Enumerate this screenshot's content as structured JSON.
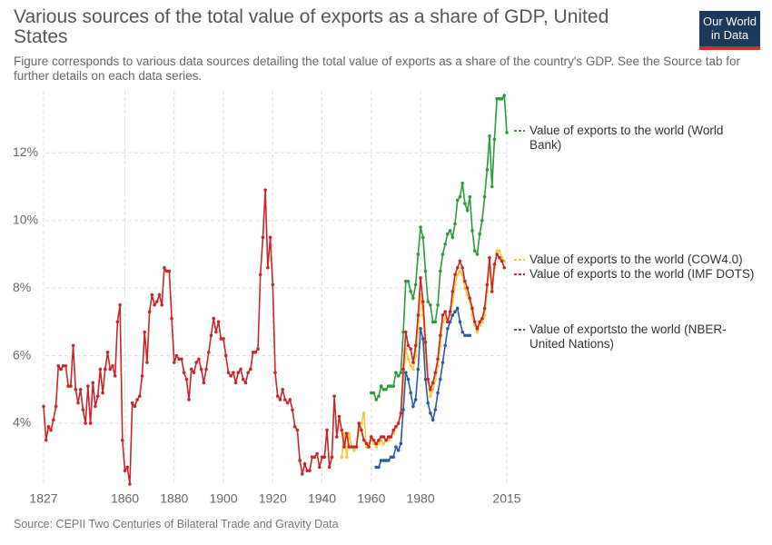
{
  "chart_data": {
    "type": "line",
    "title": "Various sources of the total value of exports as a share of GDP, United States",
    "subtitle": "Figure corresponds to various data sources detailing the total value of exports as a share of the country's GDP. See the Source tab for further details on each data series.",
    "source": "Source: CEPII Two Centuries of Bilateral Trade and Gravity Data",
    "logo": [
      "Our World",
      "in Data"
    ],
    "xlim": [
      1827,
      2015
    ],
    "xticks": [
      1827,
      1860,
      1880,
      1900,
      1920,
      1940,
      1960,
      1980,
      2015
    ],
    "ylim": [
      2.2,
      13.7
    ],
    "yticks": [
      {
        "value": 4,
        "label": "4%"
      },
      {
        "value": 6,
        "label": "6%"
      },
      {
        "value": 8,
        "label": "8%"
      },
      {
        "value": 10,
        "label": "10%"
      },
      {
        "value": 12,
        "label": "12%"
      }
    ],
    "grid": true,
    "series": [
      {
        "name": "Value of exports to the world (World Bank)",
        "color": "#2f9a3c",
        "x": [
          1960,
          1961,
          1962,
          1963,
          1964,
          1965,
          1966,
          1967,
          1968,
          1969,
          1970,
          1971,
          1972,
          1973,
          1974,
          1975,
          1976,
          1977,
          1978,
          1979,
          1980,
          1981,
          1982,
          1983,
          1984,
          1985,
          1986,
          1987,
          1988,
          1989,
          1990,
          1991,
          1992,
          1993,
          1994,
          1995,
          1996,
          1997,
          1998,
          1999,
          2000,
          2001,
          2002,
          2003,
          2004,
          2005,
          2006,
          2007,
          2008,
          2009,
          2010,
          2011,
          2012,
          2013,
          2014,
          2015
        ],
        "values": [
          4.9,
          4.9,
          4.7,
          4.8,
          5.1,
          5.0,
          5.0,
          5.1,
          5.1,
          5.1,
          5.5,
          5.4,
          5.5,
          6.7,
          8.2,
          8.2,
          7.9,
          7.7,
          8.1,
          9.0,
          9.8,
          9.5,
          8.5,
          7.6,
          7.5,
          7.0,
          7.0,
          7.5,
          8.5,
          9.0,
          9.3,
          9.6,
          9.7,
          9.5,
          9.9,
          10.6,
          10.7,
          11.1,
          10.5,
          10.3,
          10.7,
          9.7,
          9.1,
          9.0,
          9.6,
          10.0,
          10.7,
          11.5,
          12.5,
          11.0,
          12.4,
          13.6,
          13.6,
          13.6,
          13.7,
          12.6
        ]
      },
      {
        "name": "Value of exports to the world (COW4.0)",
        "color": "#f6c939",
        "x": [
          1948,
          1949,
          1950,
          1951,
          1952,
          1953,
          1954,
          1955,
          1956,
          1957,
          1958,
          1959,
          1960,
          1961,
          1962,
          1963,
          1964,
          1965,
          1966,
          1967,
          1968,
          1969,
          1970,
          1971,
          1972,
          1973,
          1974,
          1975,
          1976,
          1977,
          1978,
          1979,
          1980,
          1981,
          1982,
          1983,
          1984,
          1985,
          1986,
          1987,
          1988,
          1989,
          1990,
          1991,
          1992,
          1993,
          1994,
          1995,
          1996,
          1997,
          1998,
          1999,
          2000,
          2001,
          2002,
          2003,
          2004,
          2005,
          2006,
          2007,
          2008,
          2009,
          2010,
          2011,
          2012,
          2013,
          2014
        ],
        "values": [
          3.0,
          3.7,
          3.0,
          3.7,
          3.3,
          3.2,
          3.3,
          3.8,
          4.0,
          4.3,
          3.3,
          3.4,
          3.6,
          3.4,
          3.3,
          3.4,
          3.5,
          3.4,
          3.5,
          3.5,
          3.6,
          3.7,
          3.9,
          4.0,
          4.2,
          5.2,
          6.2,
          5.9,
          5.7,
          5.6,
          6.0,
          6.7,
          7.8,
          7.2,
          6.0,
          5.2,
          4.8,
          5.0,
          5.3,
          5.7,
          6.3,
          7.0,
          7.1,
          7.0,
          7.2,
          7.6,
          8.1,
          8.4,
          8.5,
          8.4,
          8.0,
          7.8,
          7.6,
          7.2,
          6.9,
          6.7,
          6.9,
          7.0,
          7.2,
          7.9,
          8.6,
          7.9,
          8.6,
          9.1,
          9.1,
          8.9,
          8.8
        ]
      },
      {
        "name": "Value of exports to the world (IMF DOTS)",
        "color": "#c8262b",
        "x": [
          1827,
          1828,
          1829,
          1830,
          1831,
          1832,
          1833,
          1834,
          1835,
          1836,
          1837,
          1838,
          1839,
          1840,
          1841,
          1842,
          1843,
          1844,
          1845,
          1846,
          1847,
          1848,
          1849,
          1850,
          1851,
          1852,
          1853,
          1854,
          1855,
          1856,
          1857,
          1858,
          1859,
          1860,
          1861,
          1862,
          1863,
          1864,
          1865,
          1866,
          1867,
          1868,
          1869,
          1870,
          1871,
          1872,
          1873,
          1874,
          1875,
          1876,
          1877,
          1878,
          1879,
          1880,
          1881,
          1882,
          1883,
          1884,
          1885,
          1886,
          1887,
          1888,
          1889,
          1890,
          1891,
          1892,
          1893,
          1894,
          1895,
          1896,
          1897,
          1898,
          1899,
          1900,
          1901,
          1902,
          1903,
          1904,
          1905,
          1906,
          1907,
          1908,
          1909,
          1910,
          1911,
          1912,
          1913,
          1914,
          1915,
          1916,
          1917,
          1918,
          1919,
          1920,
          1921,
          1922,
          1923,
          1924,
          1925,
          1926,
          1927,
          1928,
          1929,
          1930,
          1931,
          1932,
          1933,
          1934,
          1935,
          1936,
          1937,
          1938,
          1939,
          1940,
          1941,
          1942,
          1943,
          1944,
          1945,
          1946,
          1947,
          1948,
          1949,
          1950,
          1951,
          1952,
          1953,
          1954,
          1955,
          1956,
          1957,
          1958,
          1959,
          1960,
          1961,
          1962,
          1963,
          1964,
          1965,
          1966,
          1967,
          1968,
          1969,
          1970,
          1971,
          1972,
          1973,
          1974,
          1975,
          1976,
          1977,
          1978,
          1979,
          1980,
          1981,
          1982,
          1983,
          1984,
          1985,
          1986,
          1987,
          1988,
          1989,
          1990,
          1991,
          1992,
          1993,
          1994,
          1995,
          1996,
          1997,
          1998,
          1999,
          2000,
          2001,
          2002,
          2003,
          2004,
          2005,
          2006,
          2007,
          2008,
          2009,
          2010,
          2011,
          2012,
          2013,
          2014
        ],
        "values": [
          4.5,
          3.5,
          3.9,
          3.8,
          4.1,
          4.5,
          5.7,
          5.6,
          5.7,
          5.7,
          5.1,
          5.1,
          6.3,
          5.0,
          4.6,
          5.0,
          4.4,
          4.0,
          5.1,
          4.0,
          5.2,
          4.5,
          4.8,
          5.6,
          4.9,
          5.6,
          6.1,
          5.6,
          5.7,
          5.4,
          7.0,
          7.5,
          3.5,
          2.6,
          2.7,
          2.2,
          4.6,
          4.5,
          4.7,
          4.8,
          5.4,
          6.7,
          5.8,
          7.3,
          7.8,
          7.5,
          7.6,
          7.8,
          7.5,
          8.6,
          8.5,
          8.5,
          7.1,
          5.8,
          6.0,
          5.9,
          5.9,
          5.5,
          5.3,
          4.7,
          5.6,
          5.5,
          5.8,
          5.9,
          5.6,
          5.2,
          5.6,
          6.1,
          6.6,
          7.1,
          6.7,
          7.0,
          6.5,
          6.5,
          6.0,
          5.5,
          5.4,
          5.5,
          5.2,
          5.5,
          5.6,
          5.3,
          5.2,
          5.5,
          5.6,
          6.1,
          6.1,
          6.2,
          8.4,
          9.5,
          10.9,
          8.6,
          9.5,
          8.1,
          5.5,
          4.8,
          4.7,
          5.0,
          4.7,
          4.6,
          4.7,
          4.4,
          3.9,
          3.8,
          2.9,
          2.5,
          2.8,
          2.6,
          2.6,
          3.0,
          3.0,
          3.1,
          2.7,
          3.0,
          3.0,
          3.8,
          2.7,
          3.0,
          4.8,
          3.6,
          4.2,
          3.8,
          3.3,
          3.7,
          3.3,
          3.3,
          3.3,
          3.3,
          4.0,
          3.8,
          3.5,
          3.4,
          3.3,
          3.6,
          3.5,
          3.4,
          3.5,
          3.6,
          3.6,
          3.5,
          3.6,
          3.6,
          3.8,
          3.9,
          4.0,
          4.3,
          5.6,
          6.7,
          6.3,
          6.2,
          5.8,
          6.3,
          7.2,
          8.3,
          7.6,
          6.4,
          5.3,
          5.0,
          5.2,
          5.5,
          5.9,
          6.6,
          7.2,
          7.3,
          7.0,
          7.3,
          7.9,
          8.4,
          8.6,
          8.8,
          8.6,
          8.2,
          8.0,
          7.7,
          7.4,
          7.0,
          6.8,
          7.0,
          7.1,
          7.4,
          8.1,
          8.9,
          7.9,
          8.7,
          9.0,
          8.9,
          8.8,
          8.6
        ]
      },
      {
        "name": "Value of exportsto the world (NBER-United Nations)",
        "color": "#2b5aa8",
        "x": [
          1962,
          1963,
          1964,
          1965,
          1966,
          1967,
          1968,
          1969,
          1970,
          1971,
          1972,
          1973,
          1974,
          1975,
          1976,
          1977,
          1978,
          1979,
          1980,
          1981,
          1982,
          1983,
          1984,
          1985,
          1986,
          1987,
          1988,
          1989,
          1990,
          1991,
          1992,
          1993,
          1994,
          1995,
          1996,
          1997,
          1998,
          1999,
          2000
        ],
        "values": [
          2.7,
          2.7,
          2.9,
          2.9,
          2.9,
          2.9,
          3.0,
          3.0,
          3.3,
          3.2,
          3.4,
          4.4,
          5.5,
          5.3,
          4.9,
          4.5,
          4.7,
          5.6,
          6.8,
          6.5,
          5.3,
          4.6,
          4.3,
          4.1,
          4.4,
          4.9,
          5.3,
          5.8,
          6.3,
          6.8,
          7.0,
          7.2,
          7.3,
          7.4,
          7.0,
          6.7,
          6.6,
          6.6,
          6.6
        ]
      }
    ]
  }
}
